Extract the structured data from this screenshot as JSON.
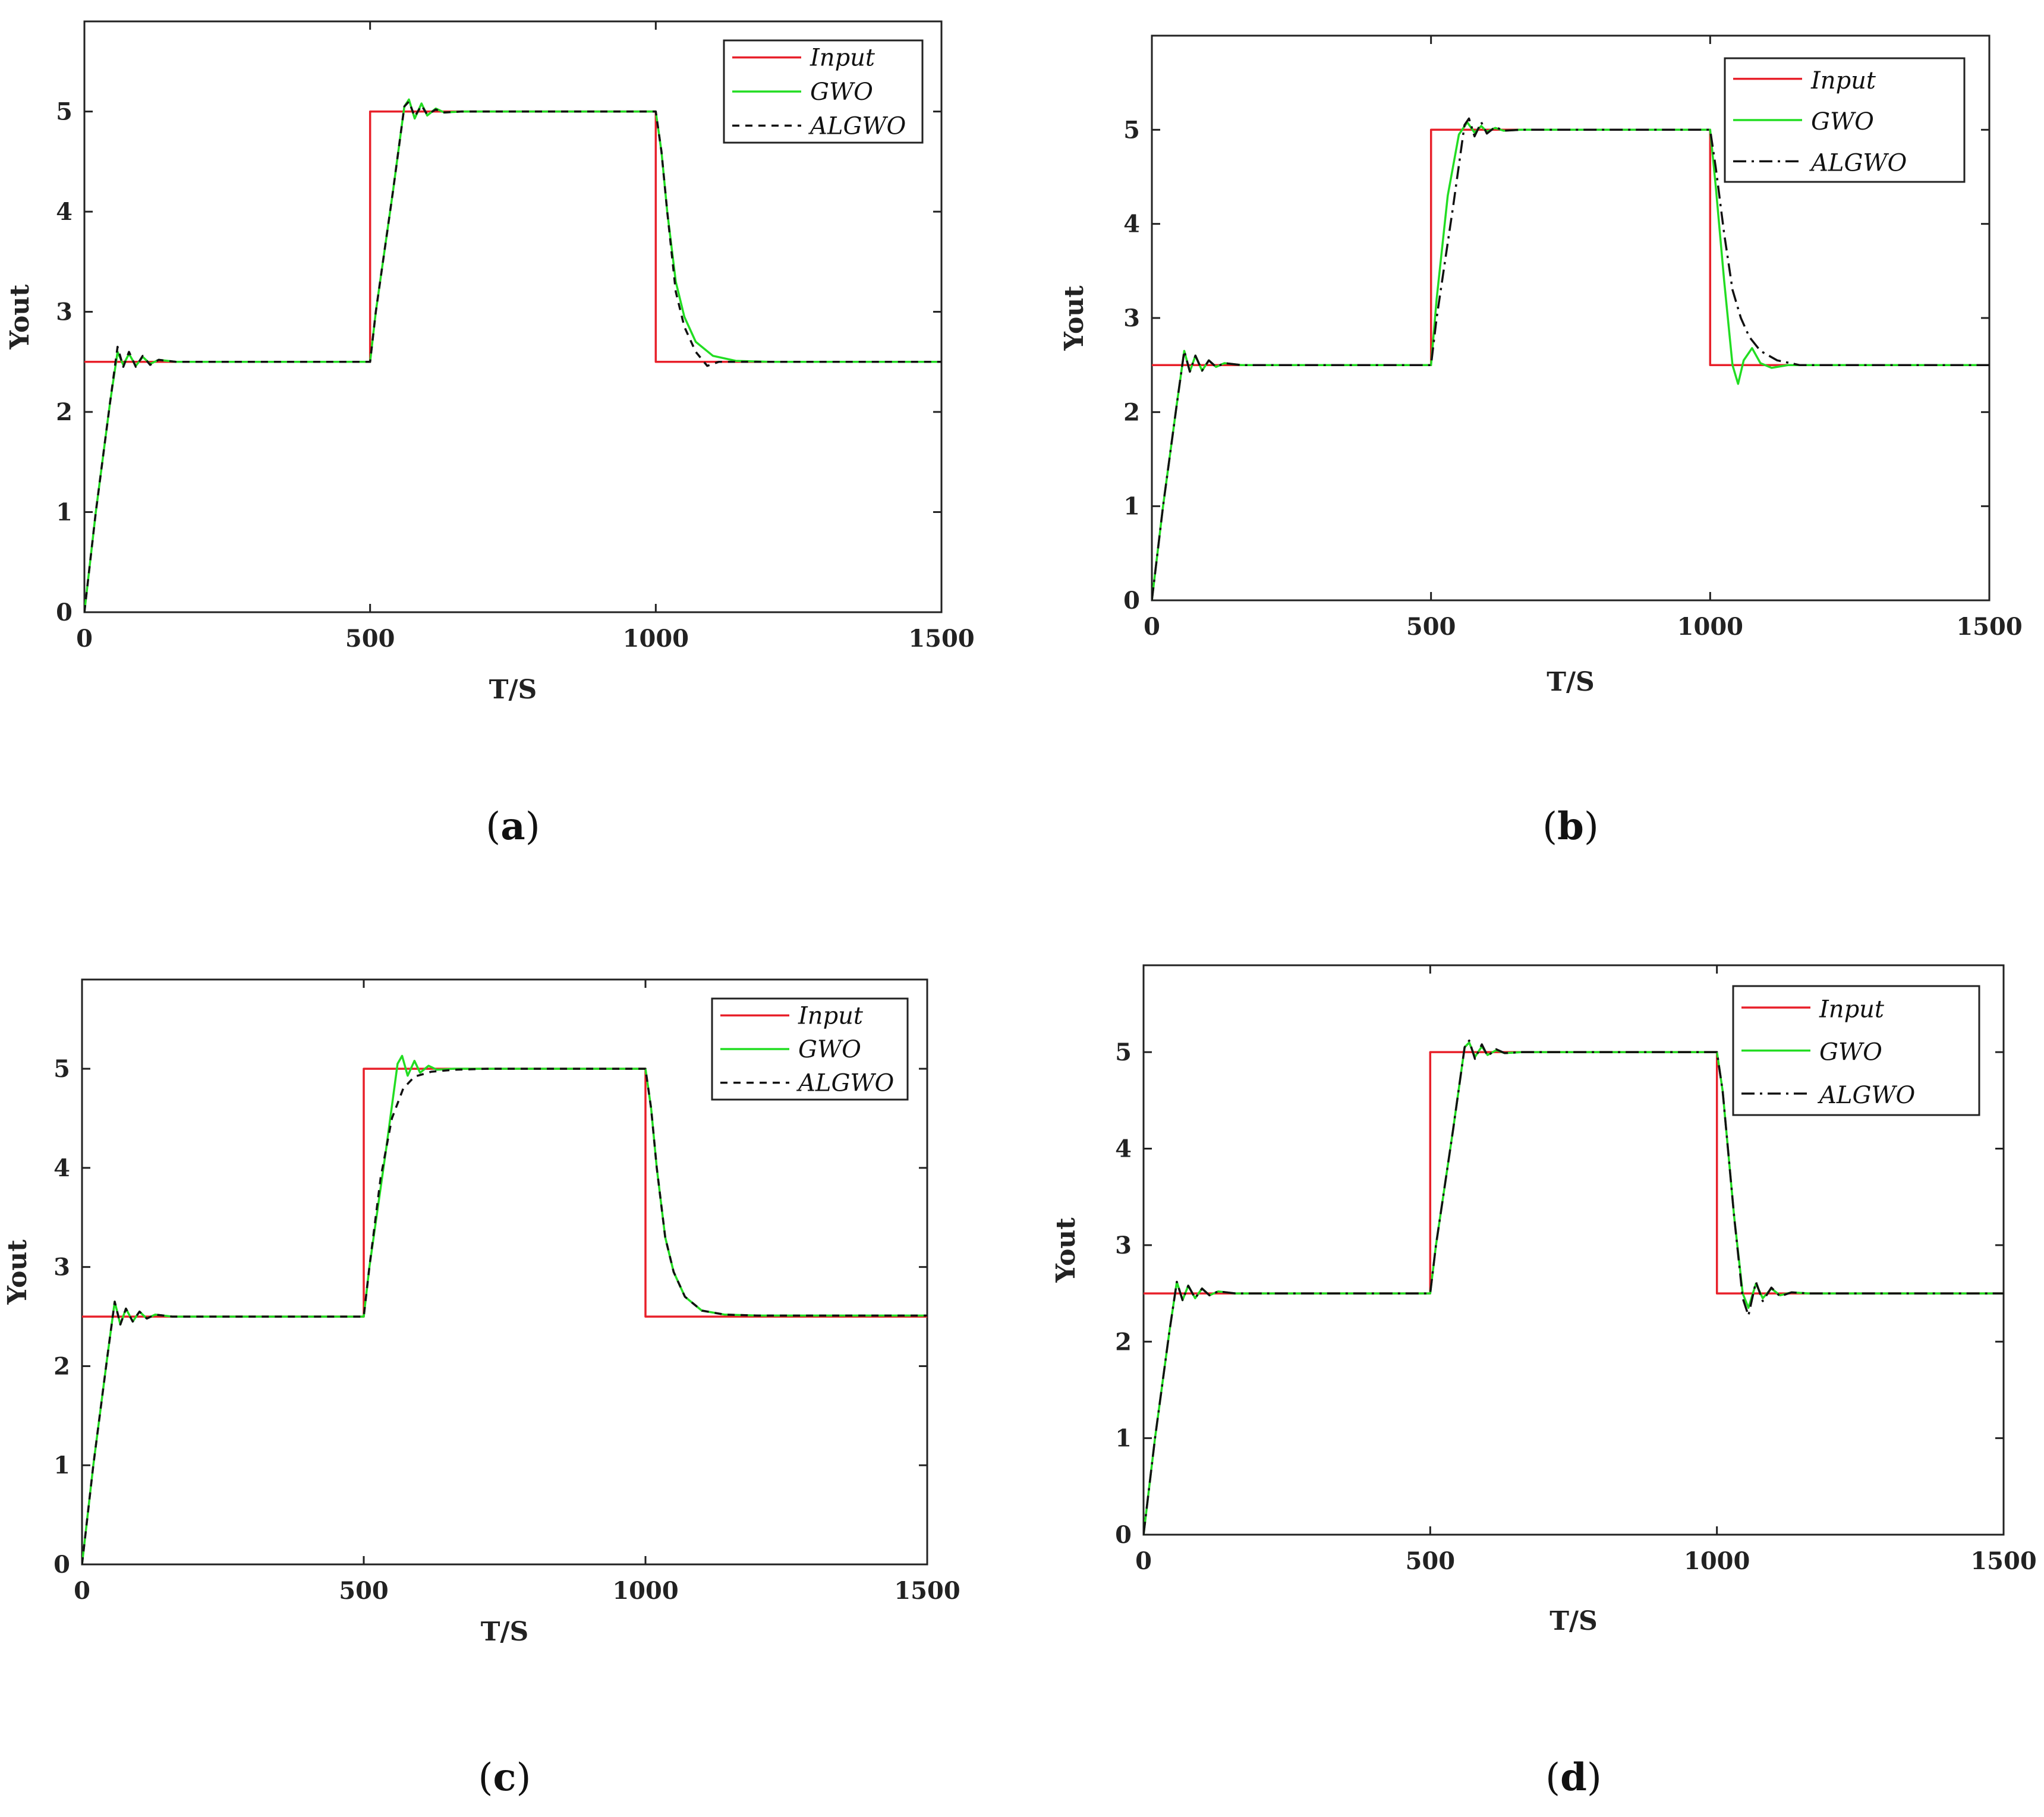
{
  "chart_data": [
    {
      "type": "line",
      "caption_letter": "a",
      "xlabel": "T/S",
      "ylabel": "Yout",
      "xlim": [
        0,
        1500
      ],
      "ylim": [
        0,
        5.9
      ],
      "xticks": [
        "0",
        "500",
        "1000",
        "1500"
      ],
      "yticks": [
        "0",
        "1",
        "2",
        "3",
        "4",
        "5"
      ],
      "legend": [
        "Input",
        "GWO",
        "ALGWO"
      ],
      "series": [
        {
          "name": "Input",
          "color": "#e8202a",
          "dash": "",
          "x": [
            0,
            500,
            500,
            1000,
            1000,
            1500
          ],
          "y": [
            2.5,
            2.5,
            5.0,
            5.0,
            2.5,
            2.5
          ]
        },
        {
          "name": "GWO",
          "color": "#22dd22",
          "dash": "",
          "x": [
            0,
            20,
            45,
            58,
            68,
            78,
            90,
            102,
            115,
            130,
            160,
            300,
            500,
            510,
            540,
            560,
            568,
            578,
            590,
            600,
            615,
            630,
            660,
            800,
            1000,
            1010,
            1020,
            1035,
            1050,
            1070,
            1100,
            1140,
            1200,
            1500
          ],
          "y": [
            0,
            1.0,
            2.1,
            2.6,
            2.47,
            2.58,
            2.46,
            2.55,
            2.48,
            2.52,
            2.5,
            2.5,
            2.5,
            3.0,
            4.2,
            5.05,
            5.12,
            4.93,
            5.08,
            4.96,
            5.03,
            4.99,
            5.0,
            5.0,
            5.0,
            4.6,
            4.0,
            3.3,
            2.95,
            2.7,
            2.56,
            2.51,
            2.5,
            2.5
          ]
        },
        {
          "name": "ALGWO",
          "color": "#111111",
          "dash": "12,10",
          "x": [
            0,
            20,
            45,
            58,
            68,
            78,
            90,
            102,
            115,
            130,
            160,
            300,
            500,
            510,
            540,
            560,
            568,
            578,
            590,
            600,
            615,
            630,
            660,
            800,
            1000,
            1010,
            1020,
            1035,
            1050,
            1070,
            1090,
            1110,
            1150,
            1500
          ],
          "y": [
            0,
            1.0,
            2.1,
            2.65,
            2.45,
            2.6,
            2.45,
            2.56,
            2.47,
            2.52,
            2.5,
            2.5,
            2.5,
            3.0,
            4.2,
            5.05,
            5.1,
            4.95,
            5.06,
            4.97,
            5.02,
            4.99,
            5.0,
            5.0,
            5.0,
            4.6,
            4.0,
            3.2,
            2.85,
            2.6,
            2.46,
            2.5,
            2.5,
            2.5
          ]
        }
      ]
    },
    {
      "type": "line",
      "caption_letter": "b",
      "xlabel": "T/S",
      "ylabel": "Yout",
      "xlim": [
        0,
        1500
      ],
      "ylim": [
        0,
        6.0
      ],
      "xticks": [
        "0",
        "500",
        "1000",
        "1500"
      ],
      "yticks": [
        "0",
        "1",
        "2",
        "3",
        "4",
        "5"
      ],
      "legend": [
        "Input",
        "GWO",
        "ALGWO"
      ],
      "series": [
        {
          "name": "Input",
          "color": "#e8202a",
          "dash": "",
          "x": [
            0,
            500,
            500,
            1000,
            1000,
            1500
          ],
          "y": [
            2.5,
            2.5,
            5.0,
            5.0,
            2.5,
            2.5
          ]
        },
        {
          "name": "GWO",
          "color": "#22dd22",
          "dash": "",
          "x": [
            0,
            20,
            45,
            58,
            68,
            78,
            90,
            102,
            115,
            130,
            160,
            300,
            500,
            510,
            530,
            550,
            565,
            578,
            590,
            600,
            615,
            630,
            660,
            800,
            1000,
            1010,
            1025,
            1040,
            1050,
            1060,
            1075,
            1090,
            1110,
            1140,
            1500
          ],
          "y": [
            0,
            1.0,
            2.1,
            2.65,
            2.43,
            2.6,
            2.44,
            2.55,
            2.48,
            2.52,
            2.5,
            2.5,
            2.5,
            3.2,
            4.3,
            4.95,
            5.08,
            4.97,
            5.04,
            4.98,
            5.02,
            4.99,
            5.0,
            5.0,
            5.0,
            4.4,
            3.4,
            2.5,
            2.3,
            2.55,
            2.68,
            2.52,
            2.47,
            2.5,
            2.5
          ]
        },
        {
          "name": "ALGWO",
          "color": "#111111",
          "dash": "22,9,4,9",
          "x": [
            0,
            20,
            45,
            58,
            68,
            78,
            90,
            102,
            115,
            130,
            160,
            300,
            500,
            510,
            540,
            560,
            568,
            578,
            590,
            600,
            615,
            630,
            660,
            800,
            1000,
            1010,
            1025,
            1040,
            1055,
            1070,
            1090,
            1120,
            1160,
            1500
          ],
          "y": [
            0,
            1.0,
            2.1,
            2.65,
            2.43,
            2.6,
            2.44,
            2.55,
            2.48,
            2.52,
            2.5,
            2.5,
            2.5,
            3.0,
            4.2,
            5.05,
            5.12,
            4.93,
            5.08,
            4.96,
            5.03,
            4.99,
            5.0,
            5.0,
            5.0,
            4.6,
            3.9,
            3.3,
            3.0,
            2.8,
            2.65,
            2.55,
            2.5,
            2.5
          ]
        }
      ]
    },
    {
      "type": "line",
      "caption_letter": "c",
      "xlabel": "T/S",
      "ylabel": "Yout",
      "xlim": [
        0,
        1500
      ],
      "ylim": [
        0,
        5.9
      ],
      "xticks": [
        "0",
        "500",
        "1000",
        "1500"
      ],
      "yticks": [
        "0",
        "1",
        "2",
        "3",
        "4",
        "5"
      ],
      "legend": [
        "Input",
        "GWO",
        "ALGWO"
      ],
      "series": [
        {
          "name": "Input",
          "color": "#e8202a",
          "dash": "",
          "x": [
            0,
            500,
            500,
            1000,
            1000,
            1500
          ],
          "y": [
            2.5,
            2.5,
            5.0,
            5.0,
            2.5,
            2.5
          ]
        },
        {
          "name": "GWO",
          "color": "#22dd22",
          "dash": "",
          "x": [
            0,
            20,
            45,
            58,
            68,
            78,
            90,
            102,
            115,
            130,
            160,
            300,
            500,
            510,
            540,
            560,
            568,
            578,
            590,
            600,
            615,
            630,
            660,
            800,
            1000,
            1010,
            1020,
            1035,
            1050,
            1070,
            1100,
            1140,
            1200,
            1500
          ],
          "y": [
            0,
            1.0,
            2.1,
            2.65,
            2.42,
            2.58,
            2.45,
            2.55,
            2.48,
            2.52,
            2.5,
            2.5,
            2.5,
            3.0,
            4.2,
            5.05,
            5.13,
            4.93,
            5.08,
            4.96,
            5.03,
            4.99,
            5.0,
            5.0,
            5.0,
            4.6,
            4.0,
            3.3,
            2.95,
            2.7,
            2.56,
            2.52,
            2.51,
            2.51
          ]
        },
        {
          "name": "ALGWO",
          "color": "#111111",
          "dash": "12,10",
          "x": [
            0,
            20,
            45,
            58,
            68,
            78,
            90,
            102,
            115,
            130,
            160,
            300,
            500,
            510,
            530,
            550,
            570,
            590,
            620,
            660,
            720,
            800,
            1000,
            1010,
            1020,
            1035,
            1050,
            1070,
            1100,
            1140,
            1200,
            1500
          ],
          "y": [
            0,
            1.0,
            2.1,
            2.65,
            2.42,
            2.58,
            2.45,
            2.55,
            2.48,
            2.52,
            2.5,
            2.5,
            2.5,
            3.0,
            3.9,
            4.5,
            4.8,
            4.92,
            4.97,
            4.99,
            5.0,
            5.0,
            5.0,
            4.6,
            4.0,
            3.3,
            2.95,
            2.7,
            2.56,
            2.52,
            2.51,
            2.51
          ]
        }
      ]
    },
    {
      "type": "line",
      "caption_letter": "d",
      "xlabel": "T/S",
      "ylabel": "Yout",
      "xlim": [
        0,
        1500
      ],
      "ylim": [
        0,
        5.9
      ],
      "xticks": [
        "0",
        "500",
        "1000",
        "1500"
      ],
      "yticks": [
        "0",
        "1",
        "2",
        "3",
        "4",
        "5"
      ],
      "legend": [
        "Input",
        "GWO",
        "ALGWO"
      ],
      "series": [
        {
          "name": "Input",
          "color": "#e8202a",
          "dash": "",
          "x": [
            0,
            500,
            500,
            1000,
            1000,
            1500
          ],
          "y": [
            2.5,
            2.5,
            5.0,
            5.0,
            2.5,
            2.5
          ]
        },
        {
          "name": "GWO",
          "color": "#22dd22",
          "dash": "",
          "x": [
            0,
            20,
            45,
            58,
            68,
            78,
            90,
            102,
            115,
            130,
            160,
            300,
            500,
            510,
            540,
            560,
            568,
            578,
            590,
            600,
            615,
            630,
            660,
            800,
            1000,
            1010,
            1030,
            1045,
            1055,
            1068,
            1080,
            1095,
            1110,
            1130,
            1160,
            1500
          ],
          "y": [
            0,
            1.0,
            2.1,
            2.62,
            2.43,
            2.58,
            2.45,
            2.55,
            2.48,
            2.52,
            2.5,
            2.5,
            2.5,
            3.0,
            4.2,
            5.05,
            5.1,
            4.95,
            5.06,
            4.97,
            5.02,
            4.99,
            5.0,
            5.0,
            5.0,
            4.6,
            3.3,
            2.5,
            2.35,
            2.6,
            2.45,
            2.55,
            2.48,
            2.51,
            2.5,
            2.5
          ]
        },
        {
          "name": "ALGWO",
          "color": "#111111",
          "dash": "22,9,4,9",
          "x": [
            0,
            20,
            45,
            58,
            68,
            78,
            90,
            102,
            115,
            130,
            160,
            300,
            500,
            510,
            540,
            560,
            568,
            578,
            590,
            600,
            615,
            630,
            660,
            800,
            1000,
            1010,
            1030,
            1045,
            1055,
            1068,
            1080,
            1095,
            1110,
            1130,
            1160,
            1500
          ],
          "y": [
            0,
            1.0,
            2.1,
            2.62,
            2.43,
            2.58,
            2.45,
            2.55,
            2.48,
            2.52,
            2.5,
            2.5,
            2.5,
            3.0,
            4.2,
            5.05,
            5.12,
            4.93,
            5.08,
            4.96,
            5.03,
            4.99,
            5.0,
            5.0,
            5.0,
            4.6,
            3.3,
            2.45,
            2.27,
            2.62,
            2.42,
            2.56,
            2.47,
            2.51,
            2.5,
            2.5
          ]
        }
      ]
    }
  ]
}
